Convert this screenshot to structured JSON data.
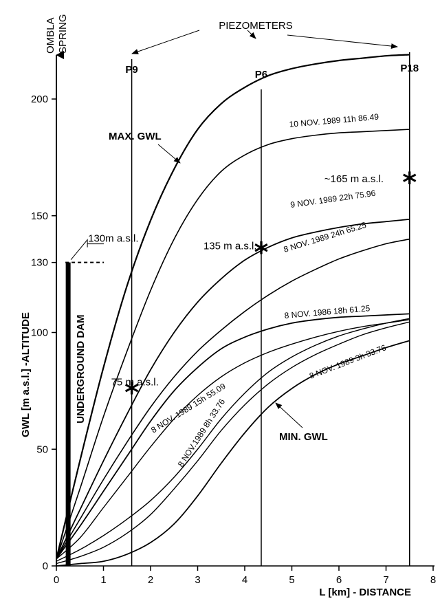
{
  "chart_data": {
    "type": "line",
    "title": "",
    "xlabel": "L [km] - DISTANCE",
    "ylabel": "GWL [m a.s.l.] -ALTITUDE",
    "xlim": [
      0,
      8
    ],
    "ylim": [
      0,
      220
    ],
    "x_ticks": [
      "0",
      "1",
      "2",
      "3",
      "4",
      "5",
      "6",
      "7",
      "8"
    ],
    "y_ticks": [
      {
        "value": 0,
        "label": "0"
      },
      {
        "value": 50,
        "label": "50"
      },
      {
        "value": 100,
        "label": "100"
      },
      {
        "value": 130,
        "label": "130"
      },
      {
        "value": 150,
        "label": "150"
      },
      {
        "value": 200,
        "label": "200"
      }
    ],
    "spring_label_line1": "OMBLA",
    "spring_label_line2": "SPRING",
    "piezometers_title": "PIEZOMETERS",
    "piezometers": [
      {
        "name": "P9",
        "x": 1.6
      },
      {
        "name": "P6",
        "x": 4.35
      },
      {
        "name": "P18",
        "x": 7.5
      }
    ],
    "dam": {
      "label": "UNDERGROUND DAM",
      "x": 0.25,
      "top": 130,
      "crest_label": "130m a.s.l."
    },
    "markers": [
      {
        "x": 1.6,
        "y": 75,
        "label": "75 m a.s.l."
      },
      {
        "x": 4.35,
        "y": 135,
        "label": "135 m a.s.l."
      },
      {
        "x": 7.5,
        "y": 165,
        "label": "~165 m a.s.l."
      }
    ],
    "series": [
      {
        "name": "MAX. GWL",
        "x": [
          0,
          0.5,
          1,
          1.5,
          2,
          2.5,
          3,
          3.5,
          4,
          4.5,
          5,
          5.5,
          6,
          6.5,
          7,
          7.5
        ],
        "y": [
          3,
          45,
          85,
          120,
          148,
          170,
          187,
          198,
          205,
          210,
          213,
          215,
          216.5,
          217.5,
          218.5,
          219
        ]
      },
      {
        "name": "10 NOV. 1989 11h",
        "end_value": "86.49",
        "x": [
          0,
          0.5,
          1,
          1.5,
          2,
          2.5,
          3,
          3.5,
          4,
          4.5,
          5,
          5.5,
          6,
          6.5,
          7,
          7.5
        ],
        "y": [
          3,
          33,
          64,
          92,
          118,
          140,
          157,
          169,
          176,
          180.5,
          183,
          184.5,
          185.5,
          186,
          186.5,
          187
        ]
      },
      {
        "name": "9 NOV. 1989 22h",
        "end_value": "75.96",
        "x": [
          0,
          0.5,
          1,
          1.5,
          2,
          2.5,
          3,
          3.5,
          4,
          4.5,
          5,
          5.5,
          6,
          6.5,
          7,
          7.5
        ],
        "y": [
          3,
          24,
          45,
          65,
          84,
          100,
          113,
          123,
          131,
          136.5,
          140.5,
          143,
          145,
          146.5,
          147.5,
          148.5
        ]
      },
      {
        "name": "8 NOV. 1989 24h",
        "end_value": "65.25",
        "x": [
          0,
          0.5,
          1,
          1.5,
          2,
          2.5,
          3,
          3.5,
          4,
          4.5,
          5,
          5.5,
          6,
          6.5,
          7,
          7.5
        ],
        "y": [
          3,
          20,
          37,
          53,
          68,
          81,
          92,
          101,
          109,
          116,
          122,
          127,
          131.5,
          135,
          138,
          140
        ]
      },
      {
        "name": "8 NOV. 1986 18h",
        "end_value": "61.25",
        "x": [
          0,
          0.5,
          1,
          1.5,
          2,
          2.5,
          3,
          3.5,
          4,
          4.5,
          5,
          5.5,
          6,
          6.5,
          7,
          7.5
        ],
        "y": [
          3,
          17,
          32,
          47,
          62,
          75,
          85,
          93,
          98,
          101.5,
          104,
          105.5,
          106.5,
          107,
          107.5,
          108
        ]
      },
      {
        "name": "8 NOV. 1989 15h",
        "end_value": "55.09",
        "x": [
          0,
          0.5,
          1,
          1.5,
          2,
          2.5,
          3,
          3.5,
          4,
          4.5,
          5,
          5.5,
          6,
          6.5,
          7,
          7.5
        ],
        "y": [
          3,
          12,
          25,
          38,
          51,
          63,
          73,
          81,
          87,
          91.5,
          95,
          98,
          100.5,
          102.5,
          104,
          105.5
        ]
      },
      {
        "name": "8 NOV.1989 8h",
        "end_value": "33.76",
        "x": [
          0,
          0.5,
          1,
          1.5,
          2,
          2.5,
          3,
          3.5,
          4,
          4.5,
          5,
          5.5,
          6,
          6.5,
          7,
          7.5
        ],
        "y": [
          2,
          7,
          13,
          20,
          28,
          38,
          50,
          63,
          74,
          83,
          89.5,
          94.5,
          98.5,
          101.5,
          104,
          106
        ]
      },
      {
        "name": "8 NOV. 1989 3h",
        "end_value": "33.76",
        "x": [
          0,
          0.5,
          1,
          1.5,
          2,
          2.5,
          3,
          3.5,
          4,
          4.5,
          5,
          5.5,
          6,
          6.5,
          7,
          7.5
        ],
        "y": [
          1,
          4,
          8,
          14,
          22,
          33,
          45,
          58,
          69,
          78,
          85,
          90.5,
          95,
          99,
          102,
          104.5
        ]
      },
      {
        "name": "MIN. GWL",
        "x": [
          0,
          0.5,
          1,
          1.5,
          2,
          2.5,
          3,
          3.5,
          4,
          4.5,
          5,
          5.5,
          6,
          6.5,
          7,
          7.5
        ],
        "y": [
          0,
          1,
          2,
          5,
          10,
          18,
          30,
          44,
          57,
          68,
          76,
          82,
          86.5,
          90,
          93.5,
          96.5
        ]
      }
    ],
    "legend": "none",
    "grid": false
  }
}
